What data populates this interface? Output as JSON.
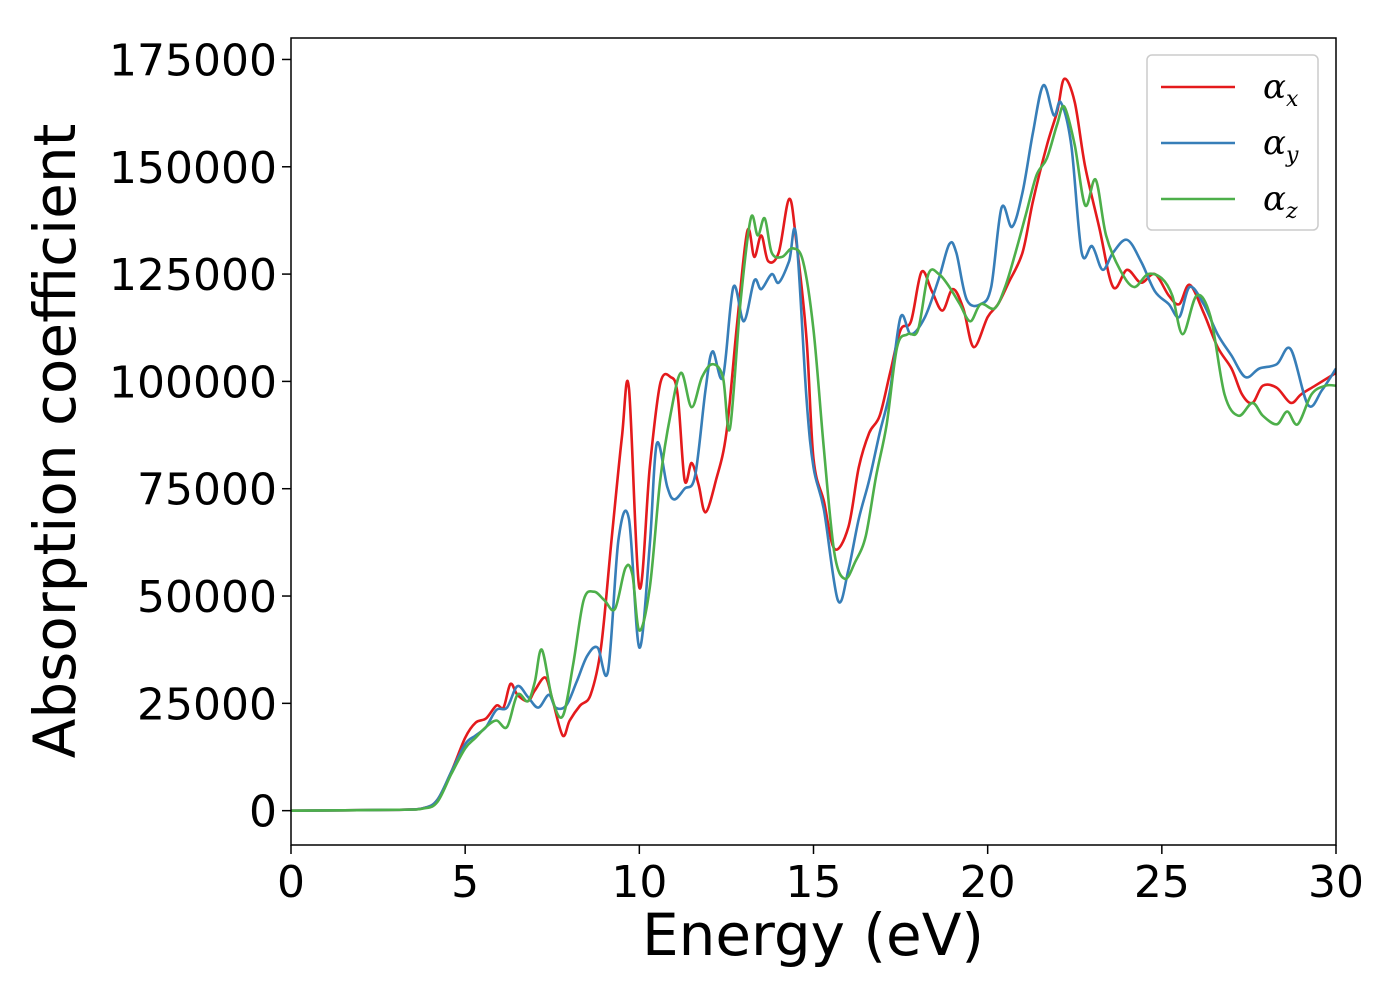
{
  "chart_data": {
    "type": "line",
    "xlabel": "Energy (eV)",
    "ylabel": "Absorption coefficient",
    "xlim": [
      0,
      30
    ],
    "ylim": [
      -8000,
      180000
    ],
    "xticks": [
      0,
      5,
      10,
      15,
      20,
      25,
      30
    ],
    "yticks": [
      0,
      25000,
      50000,
      75000,
      100000,
      125000,
      150000,
      175000
    ],
    "grid": false,
    "legend_position": "top-right",
    "series": [
      {
        "name": "α_x",
        "symbol": "α",
        "subscript": "x",
        "color": "#e41a1c",
        "points": [
          [
            0,
            0
          ],
          [
            3,
            200
          ],
          [
            3.8,
            600
          ],
          [
            4.2,
            2500
          ],
          [
            4.6,
            9000
          ],
          [
            5,
            17000
          ],
          [
            5.3,
            20500
          ],
          [
            5.6,
            21500
          ],
          [
            5.9,
            24500
          ],
          [
            6.1,
            24000
          ],
          [
            6.3,
            29500
          ],
          [
            6.5,
            27000
          ],
          [
            6.8,
            25500
          ],
          [
            7,
            28000
          ],
          [
            7.3,
            31000
          ],
          [
            7.5,
            26000
          ],
          [
            7.8,
            17500
          ],
          [
            8,
            21000
          ],
          [
            8.3,
            24500
          ],
          [
            8.6,
            27000
          ],
          [
            8.9,
            38000
          ],
          [
            9.2,
            63000
          ],
          [
            9.5,
            87000
          ],
          [
            9.7,
            98500
          ],
          [
            10,
            52000
          ],
          [
            10.3,
            80000
          ],
          [
            10.6,
            99500
          ],
          [
            10.9,
            101000
          ],
          [
            11.1,
            97000
          ],
          [
            11.3,
            77000
          ],
          [
            11.5,
            81000
          ],
          [
            11.7,
            76000
          ],
          [
            11.9,
            69500
          ],
          [
            12.2,
            77000
          ],
          [
            12.5,
            88000
          ],
          [
            12.8,
            113000
          ],
          [
            13.1,
            135000
          ],
          [
            13.3,
            129000
          ],
          [
            13.5,
            134000
          ],
          [
            13.7,
            128000
          ],
          [
            14,
            130000
          ],
          [
            14.3,
            142500
          ],
          [
            14.5,
            133000
          ],
          [
            14.8,
            110000
          ],
          [
            15,
            82000
          ],
          [
            15.3,
            72000
          ],
          [
            15.6,
            61000
          ],
          [
            16,
            66000
          ],
          [
            16.3,
            80000
          ],
          [
            16.6,
            88000
          ],
          [
            16.9,
            92000
          ],
          [
            17.2,
            102000
          ],
          [
            17.5,
            112000
          ],
          [
            17.8,
            114000
          ],
          [
            18.1,
            125500
          ],
          [
            18.4,
            121000
          ],
          [
            18.7,
            116500
          ],
          [
            19,
            121500
          ],
          [
            19.3,
            117000
          ],
          [
            19.6,
            108000
          ],
          [
            20,
            115000
          ],
          [
            20.3,
            118000
          ],
          [
            20.6,
            123000
          ],
          [
            21,
            130000
          ],
          [
            21.3,
            142000
          ],
          [
            21.7,
            155000
          ],
          [
            22,
            163000
          ],
          [
            22.2,
            170500
          ],
          [
            22.5,
            165000
          ],
          [
            22.8,
            150000
          ],
          [
            23.2,
            136000
          ],
          [
            23.6,
            122000
          ],
          [
            24,
            126000
          ],
          [
            24.4,
            123000
          ],
          [
            24.8,
            125000
          ],
          [
            25.2,
            120000
          ],
          [
            25.5,
            118000
          ],
          [
            25.8,
            122500
          ],
          [
            26.2,
            116000
          ],
          [
            26.6,
            108000
          ],
          [
            27,
            103000
          ],
          [
            27.3,
            97000
          ],
          [
            27.6,
            95000
          ],
          [
            27.9,
            99000
          ],
          [
            28.3,
            98500
          ],
          [
            28.7,
            95000
          ],
          [
            29,
            97000
          ],
          [
            29.4,
            99000
          ],
          [
            30,
            102000
          ]
        ]
      },
      {
        "name": "α_y",
        "symbol": "α",
        "subscript": "y",
        "color": "#377eb8",
        "points": [
          [
            0,
            0
          ],
          [
            3,
            200
          ],
          [
            3.8,
            600
          ],
          [
            4.2,
            2500
          ],
          [
            4.6,
            9000
          ],
          [
            5,
            15500
          ],
          [
            5.3,
            17500
          ],
          [
            5.6,
            19500
          ],
          [
            5.9,
            23500
          ],
          [
            6.2,
            24000
          ],
          [
            6.5,
            29000
          ],
          [
            6.8,
            26500
          ],
          [
            7.1,
            24000
          ],
          [
            7.4,
            27000
          ],
          [
            7.6,
            24000
          ],
          [
            7.9,
            24500
          ],
          [
            8.2,
            30000
          ],
          [
            8.5,
            36000
          ],
          [
            8.8,
            38000
          ],
          [
            9.1,
            32500
          ],
          [
            9.4,
            63000
          ],
          [
            9.7,
            68000
          ],
          [
            10,
            38000
          ],
          [
            10.3,
            62000
          ],
          [
            10.5,
            85500
          ],
          [
            10.8,
            75500
          ],
          [
            11,
            72500
          ],
          [
            11.3,
            75000
          ],
          [
            11.6,
            78000
          ],
          [
            11.9,
            98000
          ],
          [
            12.1,
            107000
          ],
          [
            12.4,
            101000
          ],
          [
            12.7,
            122000
          ],
          [
            13,
            114000
          ],
          [
            13.3,
            123500
          ],
          [
            13.5,
            121500
          ],
          [
            13.8,
            125000
          ],
          [
            14,
            123000
          ],
          [
            14.3,
            128000
          ],
          [
            14.5,
            134000
          ],
          [
            14.8,
            96000
          ],
          [
            15,
            80000
          ],
          [
            15.3,
            70000
          ],
          [
            15.7,
            49000
          ],
          [
            16,
            56000
          ],
          [
            16.3,
            68000
          ],
          [
            16.6,
            77000
          ],
          [
            16.9,
            88000
          ],
          [
            17.2,
            98000
          ],
          [
            17.5,
            115000
          ],
          [
            17.8,
            111000
          ],
          [
            18.2,
            115000
          ],
          [
            18.6,
            124000
          ],
          [
            18.9,
            132000
          ],
          [
            19.1,
            130000
          ],
          [
            19.4,
            119000
          ],
          [
            19.8,
            118000
          ],
          [
            20.1,
            122000
          ],
          [
            20.4,
            140500
          ],
          [
            20.7,
            136000
          ],
          [
            21,
            144000
          ],
          [
            21.3,
            158000
          ],
          [
            21.6,
            169000
          ],
          [
            21.9,
            162000
          ],
          [
            22.1,
            165000
          ],
          [
            22.4,
            155000
          ],
          [
            22.7,
            130000
          ],
          [
            23,
            131500
          ],
          [
            23.3,
            126000
          ],
          [
            23.6,
            130000
          ],
          [
            24,
            133000
          ],
          [
            24.4,
            128000
          ],
          [
            24.8,
            121000
          ],
          [
            25.2,
            118000
          ],
          [
            25.5,
            115000
          ],
          [
            25.8,
            122000
          ],
          [
            26.2,
            118000
          ],
          [
            26.6,
            111000
          ],
          [
            27,
            106000
          ],
          [
            27.4,
            101000
          ],
          [
            27.8,
            103000
          ],
          [
            28.3,
            104000
          ],
          [
            28.7,
            107500
          ],
          [
            29.2,
            94500
          ],
          [
            29.6,
            98000
          ],
          [
            30,
            103000
          ]
        ]
      },
      {
        "name": "α_z",
        "symbol": "α",
        "subscript": "z",
        "color": "#4daf4a",
        "points": [
          [
            0,
            0
          ],
          [
            3,
            200
          ],
          [
            3.8,
            500
          ],
          [
            4.2,
            2000
          ],
          [
            4.6,
            8500
          ],
          [
            5,
            14500
          ],
          [
            5.3,
            17000
          ],
          [
            5.6,
            19500
          ],
          [
            5.9,
            21000
          ],
          [
            6.2,
            19500
          ],
          [
            6.5,
            27000
          ],
          [
            6.8,
            25500
          ],
          [
            7,
            30000
          ],
          [
            7.2,
            37500
          ],
          [
            7.5,
            26000
          ],
          [
            7.8,
            22000
          ],
          [
            8.1,
            34000
          ],
          [
            8.4,
            49000
          ],
          [
            8.7,
            51000
          ],
          [
            9,
            49000
          ],
          [
            9.3,
            47000
          ],
          [
            9.6,
            56500
          ],
          [
            9.8,
            55000
          ],
          [
            10,
            42000
          ],
          [
            10.3,
            52000
          ],
          [
            10.6,
            77000
          ],
          [
            10.9,
            92500
          ],
          [
            11.2,
            102000
          ],
          [
            11.5,
            94000
          ],
          [
            11.8,
            101000
          ],
          [
            12.1,
            104000
          ],
          [
            12.4,
            101000
          ],
          [
            12.6,
            89000
          ],
          [
            12.9,
            118000
          ],
          [
            13.2,
            138000
          ],
          [
            13.4,
            134000
          ],
          [
            13.6,
            138000
          ],
          [
            13.8,
            130000
          ],
          [
            14.1,
            129000
          ],
          [
            14.4,
            131000
          ],
          [
            14.7,
            128000
          ],
          [
            15,
            112000
          ],
          [
            15.3,
            84000
          ],
          [
            15.6,
            60000
          ],
          [
            15.9,
            54000
          ],
          [
            16.2,
            58000
          ],
          [
            16.5,
            64000
          ],
          [
            16.8,
            78000
          ],
          [
            17.1,
            90000
          ],
          [
            17.4,
            108000
          ],
          [
            17.7,
            111000
          ],
          [
            18,
            112000
          ],
          [
            18.3,
            125000
          ],
          [
            18.6,
            125000
          ],
          [
            18.9,
            122000
          ],
          [
            19.2,
            118000
          ],
          [
            19.5,
            114000
          ],
          [
            19.8,
            118000
          ],
          [
            20.2,
            117000
          ],
          [
            20.5,
            122000
          ],
          [
            20.8,
            130000
          ],
          [
            21.1,
            139000
          ],
          [
            21.4,
            148000
          ],
          [
            21.7,
            152000
          ],
          [
            22,
            160000
          ],
          [
            22.2,
            164000
          ],
          [
            22.5,
            155000
          ],
          [
            22.8,
            141000
          ],
          [
            23.1,
            147000
          ],
          [
            23.4,
            134000
          ],
          [
            23.8,
            126000
          ],
          [
            24.2,
            122000
          ],
          [
            24.6,
            125000
          ],
          [
            25,
            124000
          ],
          [
            25.3,
            120000
          ],
          [
            25.6,
            111000
          ],
          [
            26,
            120000
          ],
          [
            26.4,
            115000
          ],
          [
            26.8,
            97000
          ],
          [
            27.2,
            92000
          ],
          [
            27.6,
            95000
          ],
          [
            27.9,
            92000
          ],
          [
            28.3,
            90000
          ],
          [
            28.6,
            93000
          ],
          [
            28.9,
            90000
          ],
          [
            29.3,
            97000
          ],
          [
            29.7,
            99000
          ],
          [
            30,
            99000
          ]
        ]
      }
    ]
  }
}
